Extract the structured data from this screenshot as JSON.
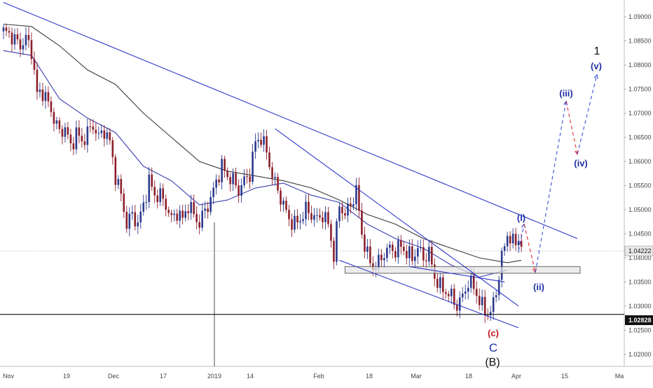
{
  "chart_data": {
    "type": "candlestick",
    "ylim": [
      1.0175,
      1.0935
    ],
    "y_ticks": [
      "1.09000",
      "1.08500",
      "1.08000",
      "1.07500",
      "1.07000",
      "1.06500",
      "1.06000",
      "1.05500",
      "1.05000",
      "1.04500",
      "1.04000",
      "1.03500",
      "1.03000",
      "1.02500",
      "1.02000"
    ],
    "x_ticks": [
      "Nov",
      "19",
      "Dec",
      "17",
      "2019",
      "14",
      "Feb",
      "18",
      "Mar",
      "18",
      "Apr",
      "15",
      "Ma"
    ],
    "price_badges": {
      "current": "1.04222",
      "level": "1.02828"
    },
    "wave_labels": {
      "i": "(i)",
      "ii": "(ii)",
      "iii": "(iii)",
      "iv": "(iv)",
      "v": "(v)",
      "one": "1",
      "c_small": "(c)",
      "c_big": "C",
      "b": "(B)"
    },
    "horizontal_line": 1.02828,
    "support_zone": [
      1.0368,
      1.0382
    ],
    "close_path": [
      [
        0,
        1.087
      ],
      [
        3,
        1.086
      ],
      [
        6,
        1.084
      ],
      [
        8,
        1.0855
      ],
      [
        10,
        1.083
      ],
      [
        12,
        1.074
      ],
      [
        14,
        1.0745
      ],
      [
        16,
        1.072
      ],
      [
        18,
        1.069
      ],
      [
        20,
        1.066
      ],
      [
        22,
        1.067
      ],
      [
        24,
        1.063
      ],
      [
        26,
        1.066
      ],
      [
        28,
        1.064
      ],
      [
        30,
        1.066
      ],
      [
        32,
        1.0675
      ],
      [
        34,
        1.065
      ],
      [
        36,
        1.0665
      ],
      [
        38,
        1.064
      ],
      [
        40,
        1.057
      ],
      [
        42,
        1.053
      ],
      [
        44,
        1.047
      ],
      [
        46,
        1.049
      ],
      [
        48,
        1.047
      ],
      [
        50,
        1.051
      ],
      [
        52,
        1.056
      ],
      [
        54,
        1.053
      ],
      [
        56,
        1.053
      ],
      [
        58,
        1.051
      ],
      [
        60,
        1.048
      ],
      [
        62,
        1.0495
      ],
      [
        64,
        1.048
      ],
      [
        66,
        1.051
      ],
      [
        68,
        1.049
      ],
      [
        70,
        1.047
      ],
      [
        72,
        1.05
      ],
      [
        74,
        1.052
      ],
      [
        76,
        1.056
      ],
      [
        78,
        1.059
      ],
      [
        80,
        1.057
      ],
      [
        82,
        1.056
      ],
      [
        84,
        1.054
      ],
      [
        86,
        1.056
      ],
      [
        88,
        1.0575
      ],
      [
        90,
        1.064
      ],
      [
        92,
        1.065
      ],
      [
        94,
        1.062
      ],
      [
        96,
        1.057
      ],
      [
        98,
        1.054
      ],
      [
        100,
        1.051
      ],
      [
        102,
        1.048
      ],
      [
        104,
        1.047
      ],
      [
        106,
        1.048
      ],
      [
        108,
        1.05
      ],
      [
        110,
        1.049
      ],
      [
        112,
        1.048
      ],
      [
        114,
        1.049
      ],
      [
        116,
        1.047
      ],
      [
        118,
        1.0405
      ],
      [
        120,
        1.051
      ],
      [
        122,
        1.049
      ],
      [
        124,
        1.051
      ],
      [
        126,
        1.054
      ],
      [
        128,
        1.045
      ],
      [
        130,
        1.0405
      ],
      [
        132,
        1.038
      ],
      [
        134,
        1.039
      ],
      [
        136,
        1.041
      ],
      [
        138,
        1.042
      ],
      [
        140,
        1.0415
      ],
      [
        142,
        1.0425
      ],
      [
        144,
        1.041
      ],
      [
        146,
        1.04
      ],
      [
        148,
        1.042
      ],
      [
        150,
        1.04
      ],
      [
        152,
        1.041
      ],
      [
        154,
        1.036
      ],
      [
        156,
        1.034
      ],
      [
        158,
        1.033
      ],
      [
        160,
        1.032
      ],
      [
        162,
        1.03
      ],
      [
        164,
        1.032
      ],
      [
        166,
        1.035
      ],
      [
        168,
        1.034
      ],
      [
        170,
        1.031
      ],
      [
        172,
        1.029
      ],
      [
        174,
        1.0285
      ],
      [
        176,
        1.033
      ],
      [
        178,
        1.04
      ],
      [
        180,
        1.045
      ],
      [
        182,
        1.043
      ],
      [
        184,
        1.044
      ],
      [
        185,
        1.0425
      ]
    ],
    "ma_fast": [
      [
        0,
        1.083
      ],
      [
        10,
        1.082
      ],
      [
        20,
        1.073
      ],
      [
        30,
        1.069
      ],
      [
        40,
        1.066
      ],
      [
        50,
        1.059
      ],
      [
        60,
        1.056
      ],
      [
        70,
        1.051
      ],
      [
        80,
        1.052
      ],
      [
        90,
        1.0545
      ],
      [
        100,
        1.0555
      ],
      [
        110,
        1.053
      ],
      [
        120,
        1.0515
      ],
      [
        130,
        1.047
      ],
      [
        140,
        1.044
      ],
      [
        150,
        1.042
      ],
      [
        160,
        1.0385
      ],
      [
        170,
        1.036
      ],
      [
        180,
        1.0375
      ]
    ],
    "ma_slow": [
      [
        0,
        1.0885
      ],
      [
        10,
        1.088
      ],
      [
        20,
        1.084
      ],
      [
        30,
        1.079
      ],
      [
        40,
        1.076
      ],
      [
        50,
        1.07
      ],
      [
        60,
        1.065
      ],
      [
        70,
        1.06
      ],
      [
        80,
        1.058
      ],
      [
        90,
        1.057
      ],
      [
        100,
        1.056
      ],
      [
        110,
        1.0545
      ],
      [
        120,
        1.052
      ],
      [
        130,
        1.049
      ],
      [
        140,
        1.047
      ],
      [
        150,
        1.044
      ],
      [
        160,
        1.042
      ],
      [
        170,
        1.04
      ],
      [
        180,
        1.039
      ],
      [
        185,
        1.0395
      ]
    ],
    "trendlines": [
      {
        "from": [
          0,
          1.093
        ],
        "to": [
          205,
          1.044
        ]
      },
      {
        "from": [
          97,
          1.0668
        ],
        "to": [
          184,
          1.03
        ]
      },
      {
        "from": [
          120,
          1.0395
        ],
        "to": [
          184,
          1.0255
        ]
      },
      {
        "from": [
          145,
          1.0382
        ],
        "to": [
          179,
          1.035
        ]
      }
    ],
    "projection_blue": [
      [
        184,
        1.0415
      ],
      [
        186,
        1.047
      ]
    ],
    "projection_red": [
      [
        186,
        1.047
      ],
      [
        190,
        1.037
      ]
    ],
    "projection_blue_2": [
      [
        190,
        1.037
      ],
      [
        201,
        1.0725
      ]
    ],
    "projection_red_2": [
      [
        201,
        1.0725
      ],
      [
        205,
        1.0615
      ]
    ],
    "projection_blue_3": [
      [
        205,
        1.0615
      ],
      [
        212,
        1.078
      ]
    ]
  }
}
